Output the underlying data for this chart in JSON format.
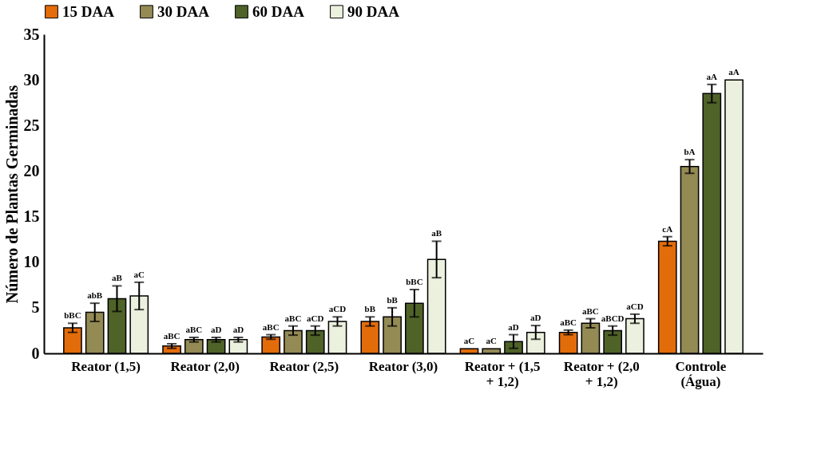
{
  "chart_data": {
    "type": "bar",
    "ylabel": "Número de Plantas Germinadas",
    "categories": [
      "Reator (1,5)",
      "Reator (2,0)",
      "Reator (2,5)",
      "Reator (3,0)",
      "Reator + (1,5 + 1,2)",
      "Reator + (2,0 + 1,2)",
      "Controle (Água)"
    ],
    "series": [
      {
        "name": "15 DAA",
        "color": "#e36c0a",
        "values": [
          2.8,
          0.8,
          1.8,
          3.5,
          0.5,
          2.3,
          12.3
        ],
        "errors": [
          0.5,
          0.25,
          0.25,
          0.5,
          null,
          0.25,
          0.5
        ],
        "value_labels": [
          "bBC",
          "aBC",
          "aBC",
          "bB",
          "aC",
          "aBC",
          "cA"
        ]
      },
      {
        "name": "30 DAA",
        "color": "#948a54",
        "values": [
          4.5,
          1.5,
          2.5,
          4.0,
          0.5,
          3.3,
          20.5
        ],
        "errors": [
          1,
          0.25,
          0.5,
          1,
          null,
          0.5,
          0.75
        ],
        "value_labels": [
          "abB",
          "aBC",
          "aBC",
          "bB",
          "aC",
          "aBC",
          "bA"
        ]
      },
      {
        "name": "60 DAA",
        "color": "#4f6228",
        "values": [
          6.0,
          1.5,
          2.5,
          5.5,
          1.3,
          2.5,
          28.5
        ],
        "errors": [
          1.4,
          0.25,
          0.5,
          1.5,
          0.75,
          0.5,
          1
        ],
        "value_labels": [
          "aB",
          "aD",
          "aCD",
          "bBC",
          "aD",
          "aBCD",
          "aA"
        ]
      },
      {
        "name": "90 DAA",
        "color": "#ebf1de",
        "values": [
          6.3,
          1.5,
          3.5,
          10.3,
          2.3,
          3.8,
          30
        ],
        "errors": [
          1.5,
          0.25,
          0.5,
          2,
          0.75,
          0.5,
          null
        ],
        "value_labels": [
          "aC",
          "aD",
          "aCD",
          "aB",
          "aD",
          "aCD",
          "aA"
        ]
      }
    ],
    "ylim": [
      0,
      35
    ],
    "yticks": [
      0,
      5,
      10,
      15,
      20,
      25,
      30,
      35
    ],
    "grid": false,
    "legend": "top"
  }
}
